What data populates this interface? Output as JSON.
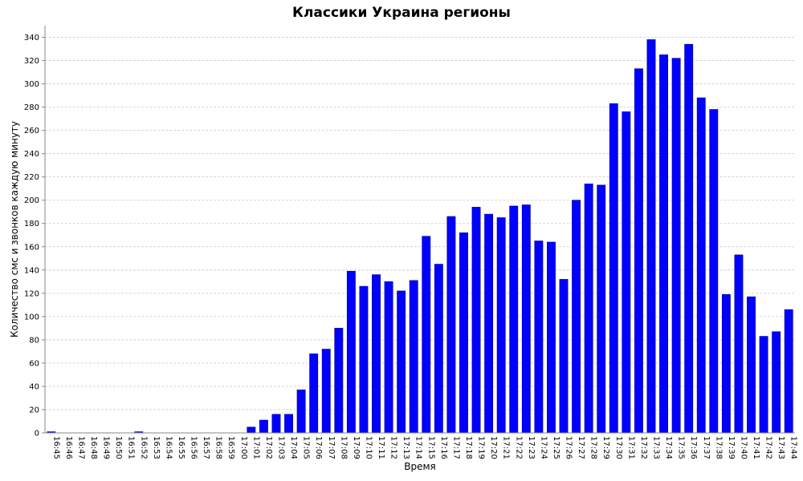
{
  "colors": {
    "bar": "#0000ff",
    "bar_outline": "#0000a0",
    "grid": "#d6d6d6",
    "axis": "#888888"
  },
  "chart_data": {
    "type": "bar",
    "title": "Классики Украина регионы",
    "xlabel": "Время",
    "ylabel": "Количество смс и звонков каждую минуту",
    "ylim": [
      0,
      350
    ],
    "yticks": [
      0,
      20,
      40,
      60,
      80,
      100,
      120,
      140,
      160,
      180,
      200,
      220,
      240,
      260,
      280,
      300,
      320,
      340
    ],
    "grid": true,
    "categories": [
      "16:45",
      "16:46",
      "16:47",
      "16:48",
      "16:49",
      "16:50",
      "16:51",
      "16:52",
      "16:53",
      "16:54",
      "16:55",
      "16:56",
      "16:57",
      "16:58",
      "16:59",
      "17:00",
      "17:01",
      "17:02",
      "17:03",
      "17:04",
      "17:05",
      "17:06",
      "17:07",
      "17:08",
      "17:09",
      "17:10",
      "17:11",
      "17:12",
      "17:13",
      "17:14",
      "17:15",
      "17:16",
      "17:17",
      "17:18",
      "17:19",
      "17:20",
      "17:21",
      "17:22",
      "17:23",
      "17:24",
      "17:25",
      "17:26",
      "17:27",
      "17:28",
      "17:29",
      "17:30",
      "17:31",
      "17:32",
      "17:33",
      "17:34",
      "17:35",
      "17:36",
      "17:37",
      "17:38",
      "17:39",
      "17:40",
      "17:41",
      "17:42",
      "17:43",
      "17:44"
    ],
    "values": [
      1,
      0,
      0,
      0,
      0,
      0,
      0,
      1,
      0,
      0,
      0,
      0,
      0,
      0,
      0,
      0,
      5,
      11,
      16,
      16,
      37,
      68,
      72,
      90,
      139,
      126,
      136,
      130,
      122,
      131,
      169,
      145,
      186,
      172,
      194,
      188,
      185,
      195,
      196,
      165,
      164,
      132,
      200,
      214,
      213,
      283,
      276,
      313,
      338,
      325,
      322,
      334,
      288,
      278,
      119,
      153,
      117,
      83,
      87,
      106
    ]
  }
}
